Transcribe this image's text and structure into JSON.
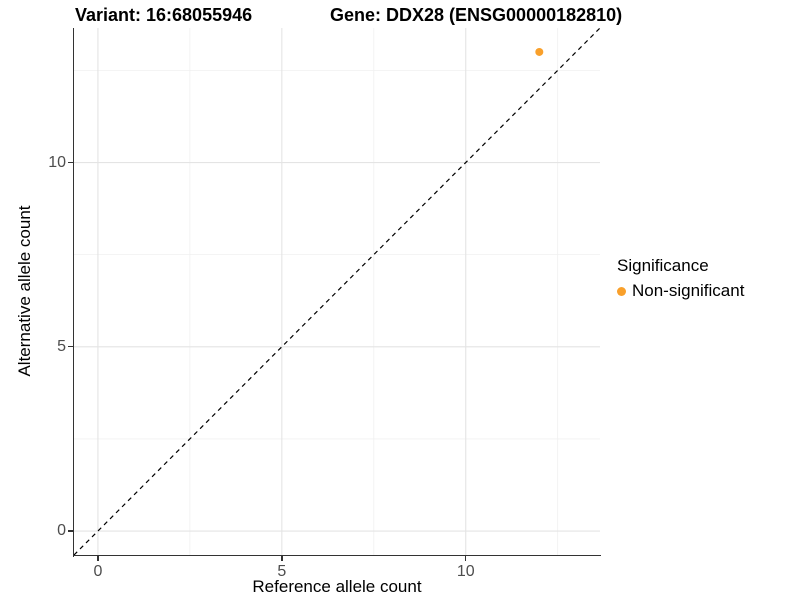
{
  "title": {
    "variant": "Variant: 16:68055946",
    "gene": "Gene: DDX28 (ENSG00000182810)"
  },
  "chart_data": {
    "type": "scatter",
    "title_left": "Variant: 16:68055946",
    "title_right": "Gene: DDX28 (ENSG00000182810)",
    "xlabel": "Reference allele count",
    "ylabel": "Alternative allele count",
    "xlim": [
      -0.65,
      13.65
    ],
    "ylim": [
      -0.65,
      13.65
    ],
    "x_ticks": {
      "major": [
        0,
        5,
        10
      ],
      "minor": [
        2.5,
        7.5,
        12.5
      ]
    },
    "y_ticks": {
      "major": [
        0,
        5,
        10
      ],
      "minor": [
        2.5,
        7.5,
        12.5
      ]
    },
    "grid": "major+minor",
    "series": [
      {
        "name": "Non-significant",
        "color": "#F9A02B",
        "points": [
          {
            "x": 12,
            "y": 13
          }
        ]
      }
    ],
    "reference_line": {
      "type": "identity",
      "linetype": "dashed",
      "color": "#000000",
      "from": [
        -0.65,
        -0.65
      ],
      "to": [
        13.65,
        13.65
      ]
    },
    "legend": {
      "title": "Significance",
      "position": "right",
      "items": [
        {
          "label": "Non-significant",
          "color": "#F9A02B",
          "marker": "circle"
        }
      ]
    }
  },
  "colors": {
    "background": "#FFFFFF",
    "grid_major": "#E4E4E4",
    "grid_minor": "#F0F0F0",
    "axis_line": "#333333",
    "tick_label": "#4D4D4D",
    "point": "#F9A02B"
  }
}
